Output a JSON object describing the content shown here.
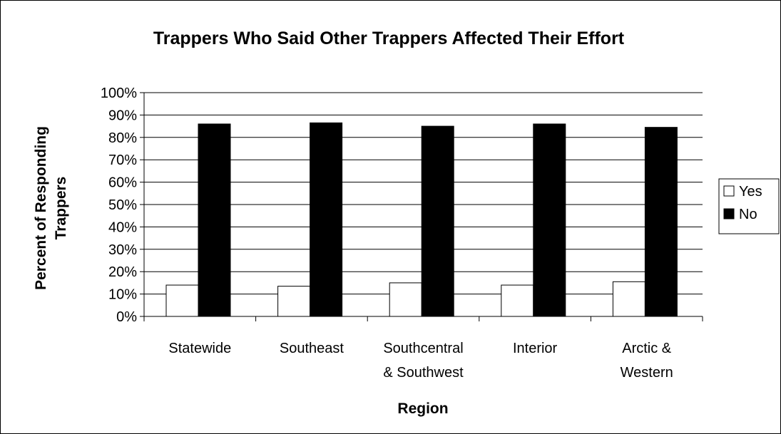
{
  "chart_data": {
    "type": "bar",
    "title": "Trappers Who Said Other Trappers Affected Their Effort",
    "xlabel": "Region",
    "ylabel": [
      "Percent of Responding",
      "Trappers"
    ],
    "categories": [
      [
        "Statewide"
      ],
      [
        "Southeast"
      ],
      [
        "Southcentral",
        "& Southwest"
      ],
      [
        "Interior"
      ],
      [
        "Arctic &",
        "Western"
      ]
    ],
    "series": [
      {
        "name": "Yes",
        "color": "#ffffff",
        "values": [
          14,
          13.5,
          15,
          14,
          15.5
        ]
      },
      {
        "name": "No",
        "color": "#000000",
        "values": [
          86,
          86.5,
          85,
          86,
          84.5
        ]
      }
    ],
    "ylim": [
      0,
      100
    ],
    "yticks": [
      "0%",
      "10%",
      "20%",
      "30%",
      "40%",
      "50%",
      "60%",
      "70%",
      "80%",
      "90%",
      "100%"
    ],
    "grid": true,
    "legend_position": "right"
  }
}
